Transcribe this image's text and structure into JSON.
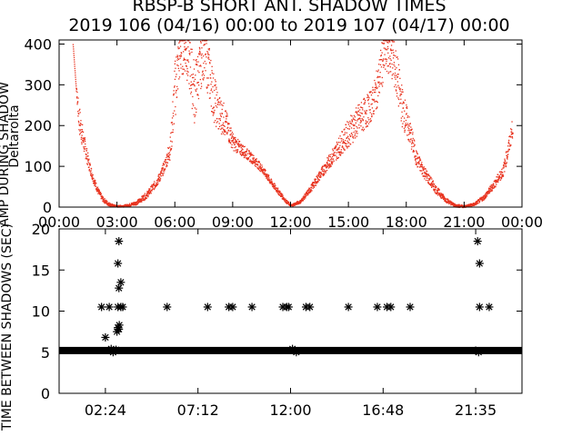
{
  "header": {
    "title": "RBSP-B SHORT ANT. SHADOW TIMES",
    "subtitle": "2019 106 (04/16) 00:00 to 2019 107 (04/17) 00:00"
  },
  "colors": {
    "trace": "#e8321e",
    "marker": "#000000",
    "axis": "#000000"
  },
  "chart_data": [
    {
      "type": "scatter",
      "ylabel": "AMP DURING SHADOW",
      "ylabel2": "Deltarolta",
      "xticks": [
        "00:00",
        "03:00",
        "06:00",
        "09:00",
        "12:00",
        "15:00",
        "18:00",
        "21:00",
        "00:00"
      ],
      "yticks": [
        "0",
        "100",
        "200",
        "300",
        "400"
      ],
      "xlim_hours": [
        0,
        24
      ],
      "ylim": [
        0,
        410
      ],
      "series": [
        {
          "profile_hours": [
            0.7,
            0.85,
            1.0,
            1.25,
            1.5,
            1.75,
            2.0,
            2.25,
            2.5,
            2.75,
            3.0,
            3.5,
            4.0,
            4.5,
            5.0,
            5.25,
            5.5,
            5.75,
            6.0,
            6.25,
            6.5,
            6.75,
            7.0,
            7.25,
            7.5,
            7.75,
            8.0,
            8.25,
            8.5,
            8.75,
            9.0,
            9.5,
            10.0,
            10.5,
            11.0,
            11.5,
            11.75,
            12.0,
            12.5,
            13.0,
            13.5,
            14.0,
            14.5,
            15.0,
            15.5,
            16.0,
            16.25,
            16.5,
            16.75,
            17.0,
            17.25,
            17.5,
            17.75,
            18.0,
            18.25,
            18.5,
            19.0,
            19.5,
            20.0,
            20.5,
            21.0,
            21.5,
            22.0,
            22.5,
            23.0,
            23.25,
            23.5
          ],
          "profile_values": [
            400,
            300,
            220,
            160,
            110,
            70,
            40,
            20,
            10,
            5,
            3,
            5,
            12,
            30,
            60,
            80,
            110,
            150,
            300,
            380,
            390,
            350,
            280,
            340,
            380,
            330,
            270,
            230,
            220,
            190,
            160,
            140,
            120,
            95,
            60,
            30,
            15,
            5,
            15,
            45,
            80,
            115,
            150,
            185,
            215,
            240,
            260,
            300,
            360,
            390,
            370,
            320,
            250,
            210,
            170,
            120,
            80,
            45,
            20,
            5,
            3,
            8,
            25,
            55,
            90,
            140,
            200
          ],
          "spread_values": [
            0,
            0,
            40,
            25,
            15,
            10,
            8,
            6,
            5,
            3,
            2,
            3,
            5,
            8,
            10,
            12,
            15,
            30,
            80,
            60,
            60,
            70,
            80,
            60,
            60,
            70,
            60,
            50,
            40,
            30,
            20,
            15,
            12,
            10,
            8,
            6,
            4,
            3,
            4,
            8,
            12,
            18,
            25,
            35,
            40,
            40,
            40,
            50,
            60,
            60,
            60,
            60,
            50,
            40,
            30,
            20,
            15,
            10,
            6,
            4,
            3,
            4,
            6,
            10,
            15,
            20,
            25
          ]
        }
      ]
    },
    {
      "type": "scatter",
      "ylabel": "TIME BETWEEN SHADOWS (SEC)",
      "xticks": [
        "02:24",
        "07:12",
        "12:00",
        "16:48",
        "21:35"
      ],
      "yticks": [
        "0",
        "5",
        "10",
        "15",
        "20"
      ],
      "xlim_hours": [
        0,
        24
      ],
      "ylim": [
        0,
        20
      ],
      "series": [
        {
          "baseline_value": 5.2,
          "baseline_start_hours": 0.0,
          "baseline_end_hours": 24.0,
          "points": [
            [
              2.2,
              10.5
            ],
            [
              2.6,
              10.5
            ],
            [
              2.4,
              6.8
            ],
            [
              2.7,
              5.4
            ],
            [
              2.8,
              5.0
            ],
            [
              2.95,
              5.3
            ],
            [
              3.0,
              7.5
            ],
            [
              3.05,
              8.0
            ],
            [
              3.1,
              7.8
            ],
            [
              3.12,
              8.3
            ],
            [
              3.05,
              10.5
            ],
            [
              3.2,
              10.5
            ],
            [
              3.3,
              10.5
            ],
            [
              3.1,
              12.8
            ],
            [
              3.2,
              13.5
            ],
            [
              3.05,
              15.8
            ],
            [
              3.1,
              18.5
            ],
            [
              5.6,
              10.5
            ],
            [
              7.7,
              10.5
            ],
            [
              8.8,
              10.5
            ],
            [
              9.0,
              10.5
            ],
            [
              10.0,
              10.5
            ],
            [
              11.6,
              10.5
            ],
            [
              11.8,
              10.5
            ],
            [
              11.9,
              10.5
            ],
            [
              12.1,
              5.4
            ],
            [
              12.3,
              5.0
            ],
            [
              12.8,
              10.5
            ],
            [
              13.0,
              10.5
            ],
            [
              15.0,
              10.5
            ],
            [
              16.5,
              10.5
            ],
            [
              17.0,
              10.5
            ],
            [
              17.2,
              10.5
            ],
            [
              18.2,
              10.5
            ],
            [
              21.6,
              5.2
            ],
            [
              21.75,
              5.0
            ],
            [
              21.7,
              18.5
            ],
            [
              21.8,
              15.8
            ],
            [
              21.8,
              10.5
            ],
            [
              22.3,
              10.5
            ]
          ]
        }
      ]
    }
  ]
}
